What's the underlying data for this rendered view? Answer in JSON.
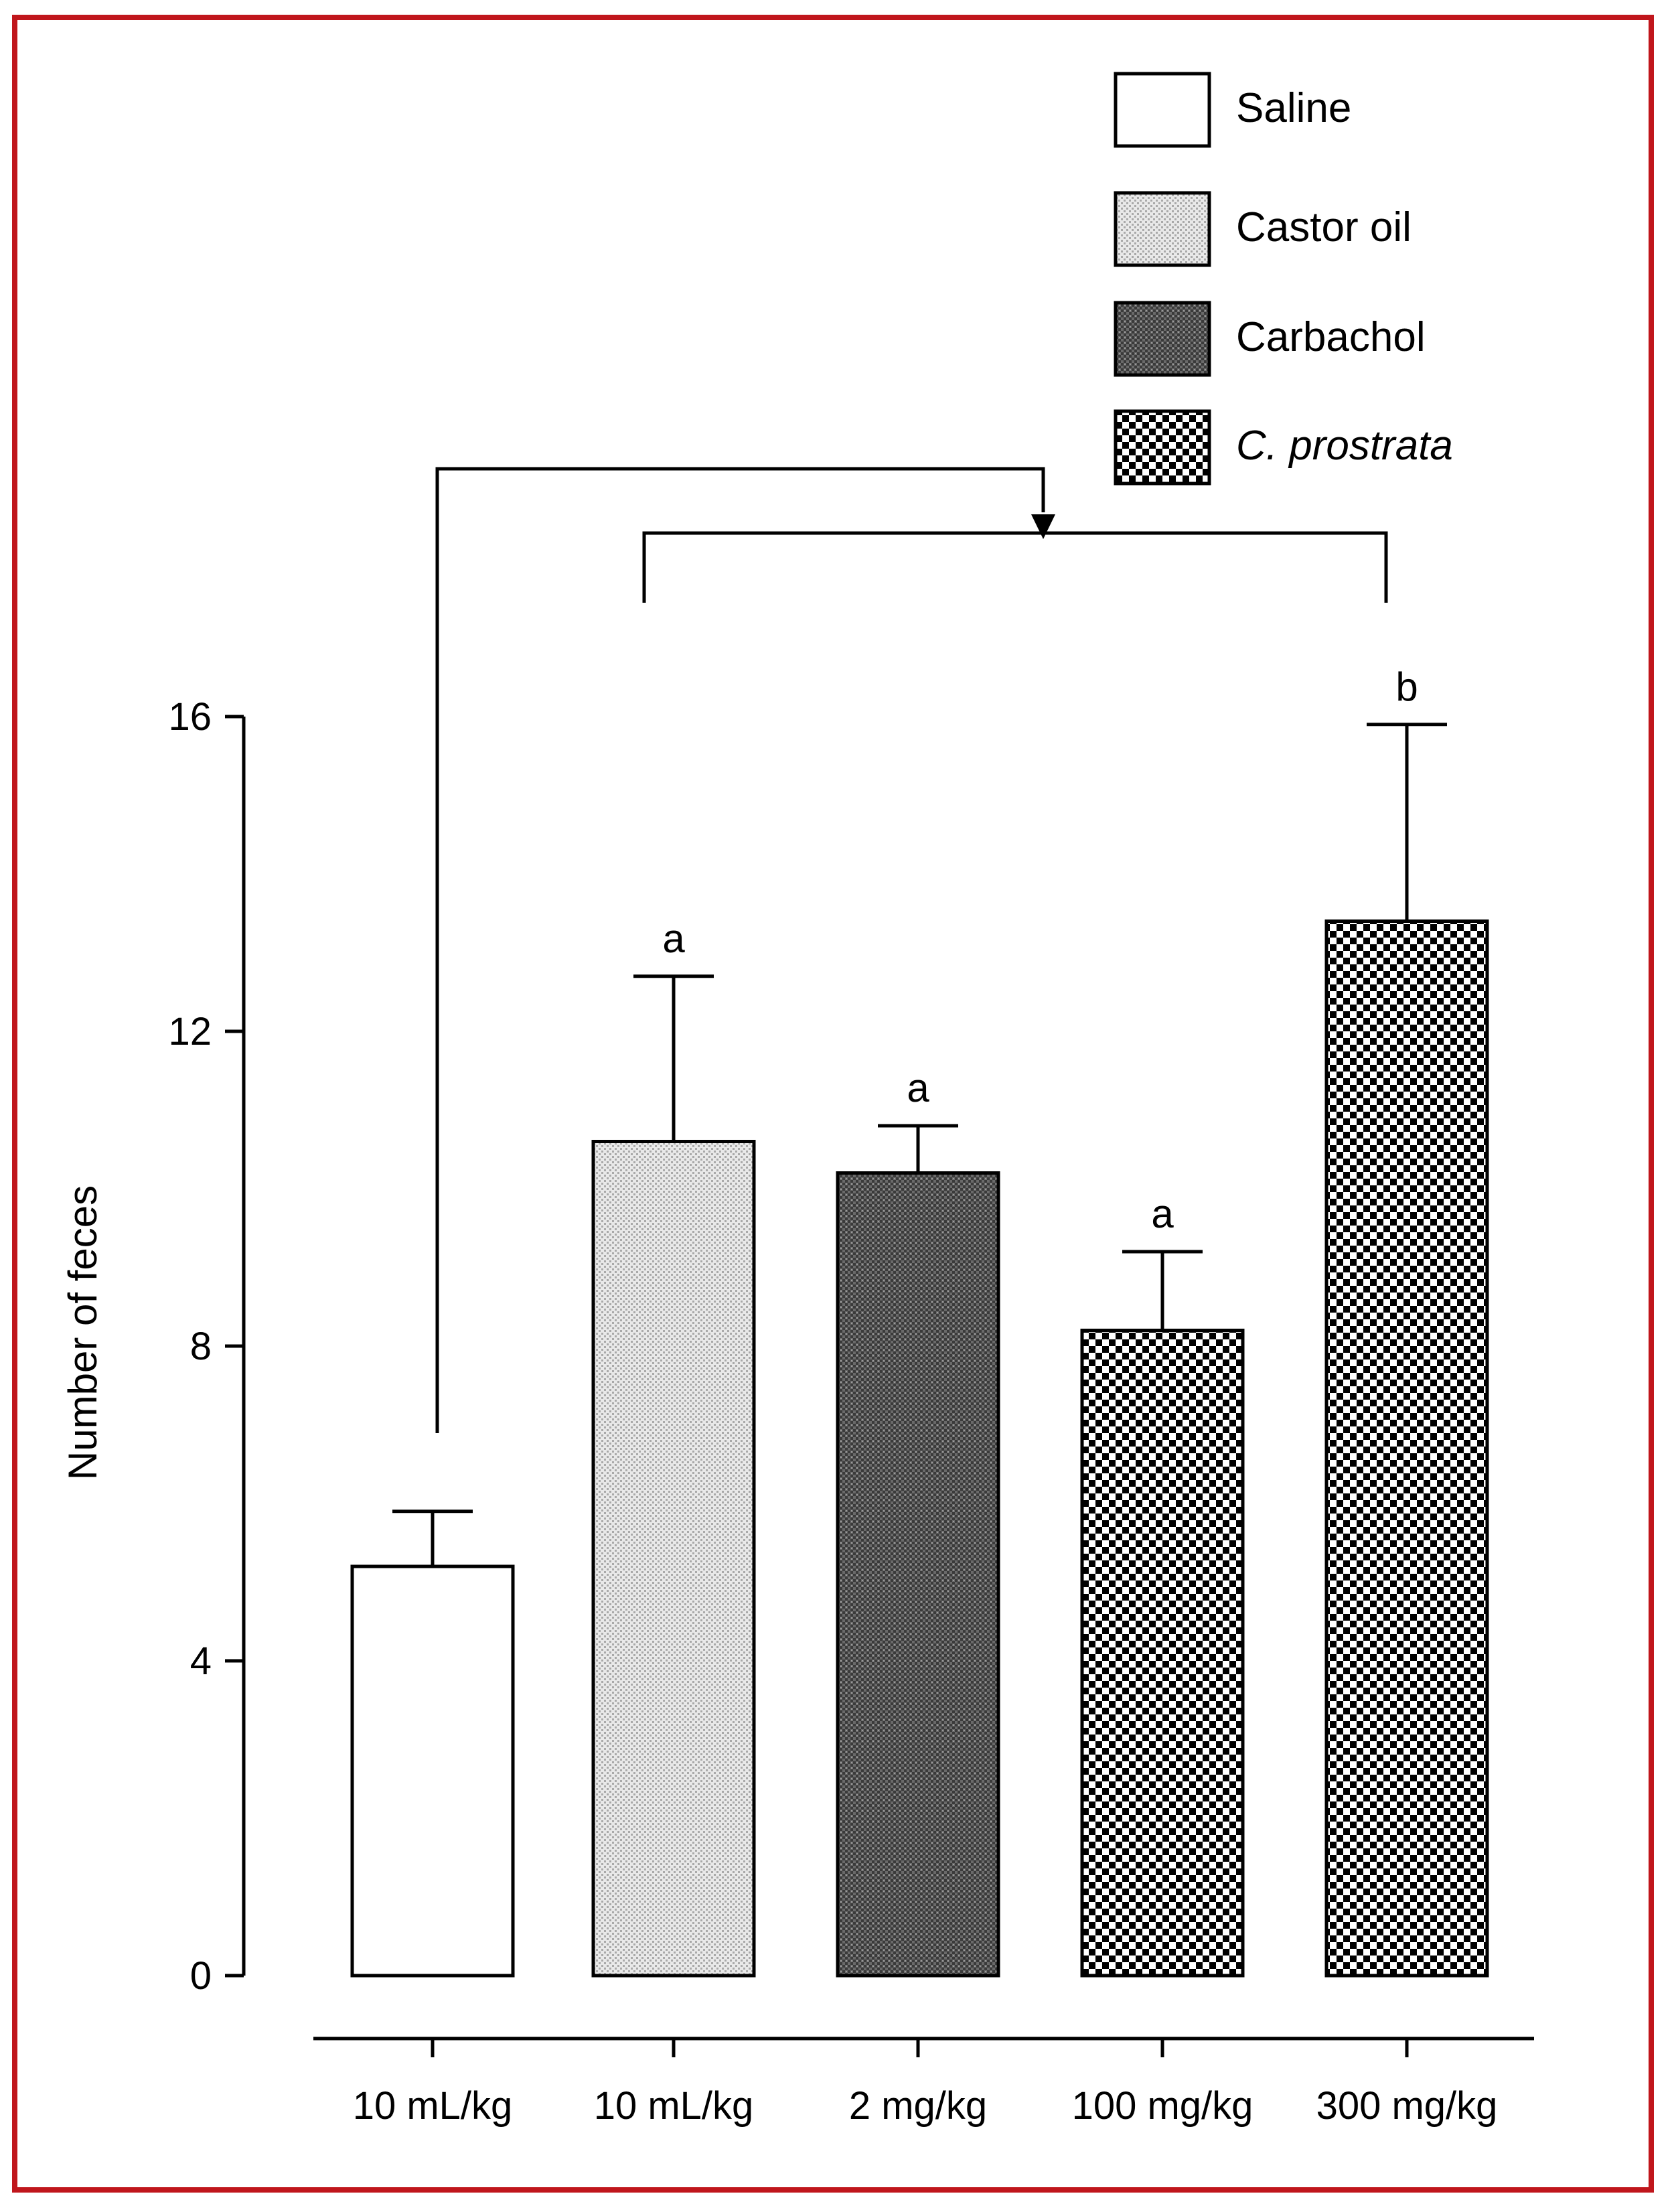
{
  "chart_data": {
    "type": "bar",
    "title": "",
    "xlabel": "",
    "ylabel": "Number of feces",
    "ylim": [
      0,
      16
    ],
    "yticks": [
      0,
      4,
      8,
      12,
      16
    ],
    "categories": [
      "10 mL/kg",
      "10 mL/kg",
      "2 mg/kg",
      "100 mg/kg",
      "300 mg/kg"
    ],
    "values": [
      5.2,
      10.6,
      10.2,
      8.2,
      13.4
    ],
    "errors": [
      0.7,
      2.1,
      0.6,
      1.0,
      2.5
    ],
    "significance": [
      "",
      "a",
      "a",
      "a",
      "b"
    ],
    "groups": [
      "Saline",
      "Castor oil",
      "Carbachol",
      "C. prostrata",
      "C. prostrata"
    ],
    "legend": {
      "placement": "top-right",
      "entries": [
        {
          "label": "Saline",
          "pattern": "empty"
        },
        {
          "label": "Castor oil",
          "pattern": "light-dots"
        },
        {
          "label": "Carbachol",
          "pattern": "dense-dark-dots"
        },
        {
          "label": "C. prostrata",
          "pattern": "checker"
        }
      ]
    },
    "grid": false,
    "comparison_bracket": "Saline vs. treated groups"
  },
  "colors": {
    "frame": "#c0161c",
    "ink": "#000000"
  }
}
